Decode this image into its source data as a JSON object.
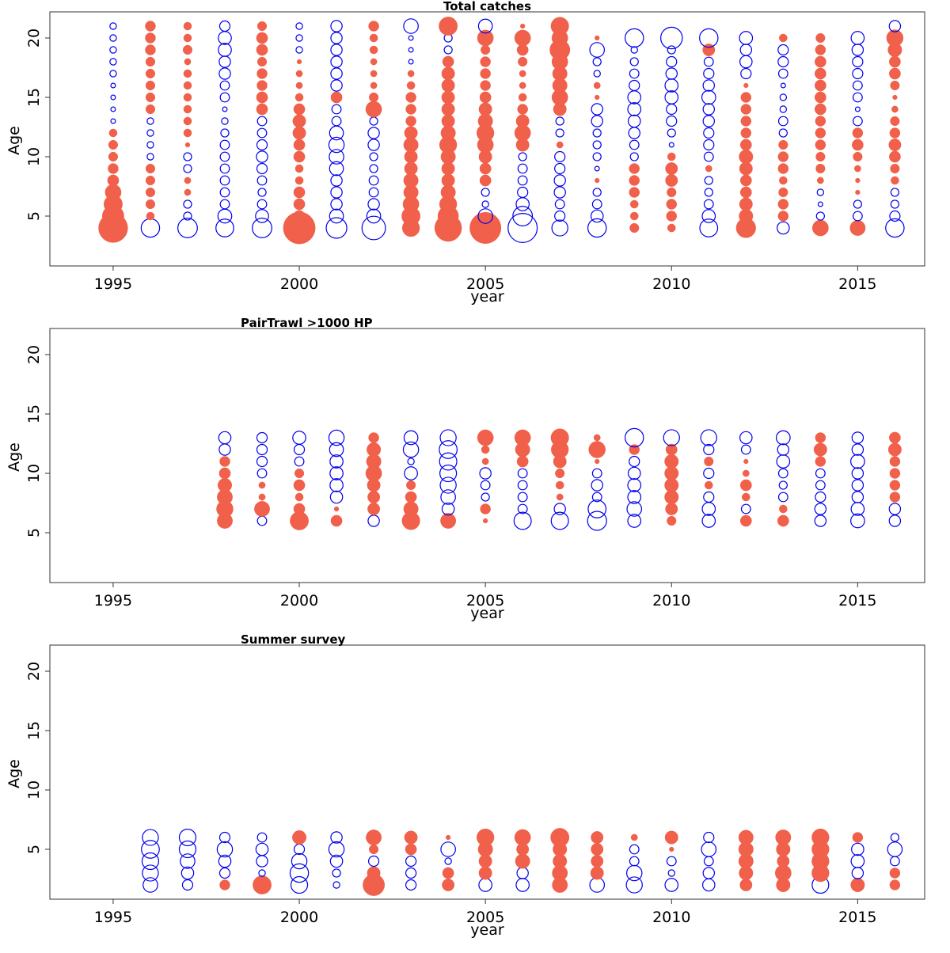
{
  "colors": {
    "positive": "#f0604a",
    "negative": "#0000ee",
    "frame": "#333333"
  },
  "chart_data": [
    {
      "type": "scatter",
      "subtype": "bubble-residuals",
      "title": "Total catches",
      "xlabel": "year",
      "ylabel": "Age",
      "xlim": [
        1993.3,
        2016.8
      ],
      "ylim": [
        0.8,
        22.2
      ],
      "xticks": [
        1995,
        2000,
        2005,
        2010,
        2015
      ],
      "yticks": [
        5,
        10,
        15,
        20
      ],
      "legend": "none",
      "grid": false,
      "columns": [
        {
          "year": 1995,
          "ages_from": 4,
          "values": [
            4,
            2.2,
            1.6,
            1.2,
            0.6,
            0.5,
            0.4,
            0.4,
            0.3,
            -0.1,
            -0.1,
            -0.1,
            -0.1,
            -0.2,
            -0.2,
            -0.2,
            -0.2,
            -0.2
          ]
        },
        {
          "year": 1996,
          "ages_from": 4,
          "values": [
            -1.6,
            0.3,
            0.4,
            0.4,
            0.4,
            0.4,
            -0.2,
            -0.2,
            -0.2,
            -0.2,
            0.4,
            0.4,
            0.4,
            0.4,
            0.4,
            0.5,
            0.5,
            0.5
          ]
        },
        {
          "year": 1997,
          "ages_from": 4,
          "values": [
            -1.8,
            -0.3,
            -0.3,
            0.2,
            0.2,
            -0.3,
            -0.3,
            0.1,
            0.3,
            0.3,
            0.3,
            0.3,
            0.3,
            0.3,
            0.2,
            0.4,
            0.3,
            0.3
          ]
        },
        {
          "year": 1998,
          "ages_from": 4,
          "values": [
            -1.5,
            -0.9,
            -0.4,
            -0.4,
            -0.4,
            -0.4,
            -0.4,
            -0.4,
            -0.3,
            -0.2,
            -0.1,
            -0.4,
            -0.4,
            -0.6,
            -0.6,
            -0.8,
            -0.8,
            -0.5
          ]
        },
        {
          "year": 1999,
          "ages_from": 4,
          "values": [
            -1.8,
            -0.8,
            -0.4,
            -0.3,
            -0.4,
            -0.5,
            -0.6,
            -0.5,
            -0.4,
            -0.4,
            0.6,
            0.6,
            0.5,
            0.5,
            0.4,
            0.6,
            0.6,
            0.4
          ]
        },
        {
          "year": 2000,
          "ages_from": 4,
          "values": [
            4.8,
            0.6,
            0.6,
            0.6,
            0.3,
            0.3,
            0.6,
            0.6,
            0.8,
            0.8,
            0.6,
            0.3,
            0.2,
            0.2,
            0.1,
            -0.2,
            -0.2,
            -0.2
          ]
        },
        {
          "year": 2001,
          "ages_from": 4,
          "values": [
            -2,
            -0.9,
            -0.6,
            -0.6,
            -0.6,
            -0.9,
            -1,
            -1.1,
            -0.9,
            -0.4,
            -0.4,
            0.6,
            -0.6,
            -0.6,
            -0.6,
            -0.6,
            -0.6,
            -0.6
          ]
        },
        {
          "year": 2002,
          "ages_from": 4,
          "values": [
            -2.6,
            -0.9,
            -0.6,
            -0.4,
            -0.4,
            -0.3,
            -0.3,
            -0.6,
            -0.6,
            -0.3,
            1.2,
            0.4,
            0.2,
            0.2,
            0.2,
            0.3,
            0.3,
            0.5
          ]
        },
        {
          "year": 2003,
          "ages_from": 4,
          "values": [
            1.4,
            1.6,
            1.2,
            1,
            1,
            0.8,
            0.8,
            1,
            0.8,
            0.5,
            0.5,
            0.5,
            0.3,
            0.2,
            -0.1,
            -0.1,
            -0.1,
            -1
          ]
        },
        {
          "year": 2004,
          "ages_from": 4,
          "values": [
            3.4,
            2,
            1.4,
            1,
            0.8,
            0.8,
            1,
            1.4,
            1,
            0.8,
            0.8,
            0.8,
            0.8,
            0.8,
            0.6,
            -0.3,
            -0.3,
            1.6
          ]
        },
        {
          "year": 2005,
          "ages_from": 4,
          "values": [
            4.6,
            -1,
            -0.2,
            -0.3,
            0.6,
            0.6,
            0.8,
            1.2,
            1.4,
            1,
            0.8,
            0.6,
            0.5,
            0.5,
            0.5,
            0.4,
            1.2,
            -0.9
          ]
        },
        {
          "year": 2006,
          "ages_from": 4,
          "values": [
            -4,
            -1.8,
            -0.8,
            -0.5,
            -0.4,
            -0.4,
            -0.3,
            0.8,
            1.2,
            0.8,
            0.5,
            0.3,
            0.2,
            0.2,
            0.4,
            0.6,
            1.2,
            0.1
          ]
        },
        {
          "year": 2007,
          "ages_from": 4,
          "values": [
            -1.2,
            -0.5,
            -0.4,
            -0.6,
            -0.6,
            -0.5,
            -0.5,
            0.2,
            -0.3,
            -0.3,
            0.8,
            1.2,
            1,
            1,
            1.2,
            1.9,
            1.2,
            1.5
          ]
        },
        {
          "year": 2008,
          "ages_from": 4,
          "values": [
            -1.6,
            -0.7,
            -0.4,
            -0.3,
            0.1,
            -0.1,
            -0.3,
            -0.3,
            -0.3,
            -0.6,
            -0.6,
            0.1,
            0.2,
            -0.2,
            -0.3,
            -1,
            0.1
          ]
        },
        {
          "year": 2009,
          "ages_from": 4,
          "values": [
            0.4,
            0.3,
            0.3,
            0.5,
            0.5,
            0.5,
            -0.3,
            -0.4,
            -0.6,
            -0.7,
            -0.8,
            -0.8,
            -0.5,
            -0.4,
            -0.3,
            -0.2,
            -1.6
          ]
        },
        {
          "year": 2010,
          "ages_from": 4,
          "values": [
            0.3,
            0.5,
            0.5,
            0.4,
            0.7,
            0.7,
            0.3,
            -0.1,
            -0.3,
            -0.5,
            -0.5,
            -0.8,
            -0.8,
            -0.6,
            -0.5,
            -0.3,
            -2.2
          ]
        },
        {
          "year": 2011,
          "ages_from": 4,
          "values": [
            -1.5,
            -0.8,
            -0.4,
            -0.3,
            -0.3,
            0.2,
            -0.4,
            -0.5,
            -0.5,
            -0.6,
            -0.6,
            -0.9,
            -0.6,
            -0.5,
            -0.4,
            0.7,
            -1.6
          ]
        },
        {
          "year": 2012,
          "ages_from": 4,
          "values": [
            1.8,
            0.9,
            0.8,
            0.6,
            0.6,
            0.8,
            0.9,
            0.6,
            0.5,
            0.5,
            0.5,
            0.5,
            0.1,
            -0.5,
            -0.7,
            -0.6,
            -0.8
          ]
        },
        {
          "year": 2013,
          "ages_from": 4,
          "values": [
            -0.7,
            0.5,
            0.5,
            0.4,
            0.3,
            0.5,
            0.5,
            0.4,
            -0.3,
            -0.4,
            -0.2,
            -0.2,
            -0.1,
            -0.4,
            -0.5,
            -0.5,
            0.3
          ]
        },
        {
          "year": 2014,
          "ages_from": 4,
          "values": [
            1.2,
            -0.3,
            -0.1,
            -0.2,
            0.2,
            0.4,
            0.4,
            0.5,
            0.5,
            0.5,
            0.6,
            0.6,
            0.6,
            0.6,
            0.6,
            0.5,
            0.4
          ]
        },
        {
          "year": 2015,
          "ages_from": 4,
          "values": [
            1.1,
            -0.4,
            -0.3,
            0.1,
            0.1,
            0.2,
            0.4,
            0.6,
            0.5,
            -0.4,
            -0.1,
            -0.4,
            -0.4,
            -0.5,
            -0.5,
            -0.6,
            -0.8
          ]
        },
        {
          "year": 2016,
          "ages_from": 4,
          "values": [
            -1.6,
            -0.5,
            -0.3,
            -0.3,
            0.3,
            0.4,
            0.6,
            0.7,
            0.5,
            0.4,
            0.2,
            0.1,
            0.4,
            0.6,
            0.6,
            0.9,
            1.3,
            -0.6
          ]
        }
      ]
    },
    {
      "type": "scatter",
      "subtype": "bubble-residuals",
      "title": "PairTrawl >1000 HP",
      "xlabel": "year",
      "ylabel": "Age",
      "xlim": [
        1993.3,
        2016.8
      ],
      "ylim": [
        0.8,
        22.2
      ],
      "xticks": [
        1995,
        2000,
        2005,
        2010,
        2015
      ],
      "yticks": [
        5,
        10,
        15,
        20
      ],
      "legend": "none",
      "grid": false,
      "columns": [
        {
          "year": 1998,
          "ages_from": 6,
          "values": [
            1.1,
            1.3,
            1.1,
            0.9,
            0.6,
            0.5,
            -0.6,
            -0.7
          ]
        },
        {
          "year": 1999,
          "ages_from": 6,
          "values": [
            -0.4,
            1.1,
            0.2,
            0.2,
            -0.4,
            -0.5,
            -0.5,
            -0.5
          ]
        },
        {
          "year": 2000,
          "ages_from": 6,
          "values": [
            1.6,
            0.6,
            0.3,
            0.6,
            0.4,
            -0.4,
            -0.5,
            -0.8
          ]
        },
        {
          "year": 2001,
          "ages_from": 6,
          "values": [
            0.6,
            0.1,
            -0.7,
            -0.8,
            -0.8,
            -0.8,
            -0.9,
            -1.1
          ]
        },
        {
          "year": 2002,
          "ages_from": 6,
          "values": [
            -0.6,
            0.7,
            0.7,
            0.8,
            1.2,
            1,
            0.9,
            0.5
          ]
        },
        {
          "year": 2003,
          "ages_from": 6,
          "values": [
            1.5,
            1,
            0.6,
            0.4,
            -0.8,
            -0.2,
            -1.1,
            -0.9
          ]
        },
        {
          "year": 2004,
          "ages_from": 6,
          "values": [
            1.1,
            -0.7,
            -1,
            -1.2,
            -1.3,
            -1.4,
            -1.5,
            -1.2
          ]
        },
        {
          "year": 2005,
          "ages_from": 6,
          "values": [
            0.1,
            0.5,
            -0.3,
            -0.4,
            -0.6,
            0.2,
            0.3,
            1.2
          ]
        },
        {
          "year": 2006,
          "ages_from": 6,
          "values": [
            -1.4,
            -0.4,
            -0.4,
            -0.4,
            -0.4,
            0.6,
            1,
            1.2
          ]
        },
        {
          "year": 2007,
          "ages_from": 6,
          "values": [
            -1.4,
            -0.6,
            0.2,
            0.3,
            0.4,
            0.8,
            1.4,
            1.5
          ]
        },
        {
          "year": 2008,
          "ages_from": 6,
          "values": [
            -1.7,
            -1.5,
            -0.4,
            -0.6,
            -0.4,
            0.1,
            1.3,
            0.2
          ]
        },
        {
          "year": 2009,
          "ages_from": 6,
          "values": [
            -0.8,
            -1,
            -0.8,
            -0.8,
            -0.7,
            -0.5,
            0.5,
            -1.6
          ]
        },
        {
          "year": 2010,
          "ages_from": 6,
          "values": [
            0.4,
            0.7,
            0.9,
            0.9,
            0.9,
            0.9,
            0.6,
            -1.2
          ]
        },
        {
          "year": 2011,
          "ages_from": 6,
          "values": [
            -0.8,
            -0.8,
            -0.5,
            0.3,
            -0.5,
            0.4,
            -0.5,
            -1.2
          ]
        },
        {
          "year": 2012,
          "ages_from": 6,
          "values": [
            0.6,
            -0.4,
            0.3,
            0.6,
            0.2,
            0.1,
            -0.4,
            -0.7
          ]
        },
        {
          "year": 2013,
          "ages_from": 6,
          "values": [
            0.6,
            0.3,
            -0.4,
            -0.3,
            -0.4,
            -0.8,
            -0.6,
            -0.9
          ]
        },
        {
          "year": 2014,
          "ages_from": 6,
          "values": [
            -0.6,
            -0.6,
            -0.5,
            -0.4,
            -0.4,
            0.5,
            0.8,
            0.5
          ]
        },
        {
          "year": 2015,
          "ages_from": 6,
          "values": [
            -0.9,
            -0.8,
            -0.6,
            -0.6,
            -0.6,
            -0.9,
            -0.6,
            -0.6
          ]
        },
        {
          "year": 2016,
          "ages_from": 6,
          "values": [
            -0.6,
            -0.6,
            0.5,
            0.5,
            0.5,
            0.5,
            0.8,
            0.6
          ]
        }
      ]
    },
    {
      "type": "scatter",
      "subtype": "bubble-residuals",
      "title": "Summer survey",
      "xlabel": "year",
      "ylabel": "Age",
      "xlim": [
        1993.3,
        2016.8
      ],
      "ylim": [
        0.8,
        22.2
      ],
      "xticks": [
        1995,
        2000,
        2005,
        2010,
        2015
      ],
      "yticks": [
        5,
        10,
        15,
        20
      ],
      "legend": "none",
      "grid": false,
      "columns": [
        {
          "year": 1996,
          "ages_from": 2,
          "values": [
            -1,
            -1.2,
            -1.3,
            -1.5,
            -1.2
          ]
        },
        {
          "year": 1997,
          "ages_from": 2,
          "values": [
            -0.5,
            -0.7,
            -1,
            -1.3,
            -1.3
          ]
        },
        {
          "year": 1998,
          "ages_from": 2,
          "values": [
            0.5,
            -0.5,
            -0.7,
            -1.1,
            -0.5
          ]
        },
        {
          "year": 1999,
          "ages_from": 2,
          "values": [
            1.6,
            -0.2,
            -0.6,
            -0.7,
            -0.4
          ]
        },
        {
          "year": 2000,
          "ages_from": 2,
          "values": [
            -1.3,
            -1.6,
            -1.1,
            -0.5,
            0.9
          ]
        },
        {
          "year": 2001,
          "ages_from": 2,
          "values": [
            -0.2,
            -0.3,
            -0.7,
            -1.1,
            -0.6
          ]
        },
        {
          "year": 2002,
          "ages_from": 2,
          "values": [
            2.2,
            0.8,
            -0.5,
            0.4,
            1.1
          ]
        },
        {
          "year": 2003,
          "ages_from": 2,
          "values": [
            -0.5,
            -0.5,
            -0.5,
            0.6,
            0.8
          ]
        },
        {
          "year": 2004,
          "ages_from": 2,
          "values": [
            0.7,
            0.6,
            -0.2,
            -1,
            0.1
          ]
        },
        {
          "year": 2005,
          "ages_from": 2,
          "values": [
            -0.8,
            0.8,
            0.8,
            1,
            1.4
          ]
        },
        {
          "year": 2006,
          "ages_from": 2,
          "values": [
            -0.8,
            -0.6,
            1,
            0.7,
            1.2
          ]
        },
        {
          "year": 2007,
          "ages_from": 2,
          "values": [
            1.1,
            1.1,
            0.9,
            0.9,
            1.6
          ]
        },
        {
          "year": 2008,
          "ages_from": 2,
          "values": [
            -1,
            0.8,
            0.7,
            0.7,
            0.7
          ]
        },
        {
          "year": 2009,
          "ages_from": 2,
          "values": [
            -1.2,
            -1.1,
            -0.4,
            -0.4,
            0.2
          ]
        },
        {
          "year": 2010,
          "ages_from": 2,
          "values": [
            -0.8,
            -0.2,
            -0.4,
            0.1,
            0.8
          ]
        },
        {
          "year": 2011,
          "ages_from": 2,
          "values": [
            -0.7,
            -0.6,
            -0.4,
            -1,
            -0.5
          ]
        },
        {
          "year": 2012,
          "ages_from": 2,
          "values": [
            0.7,
            0.9,
            1,
            1,
            1
          ]
        },
        {
          "year": 2013,
          "ages_from": 2,
          "values": [
            0.9,
            1.2,
            0.7,
            0.9,
            1.1
          ]
        },
        {
          "year": 2014,
          "ages_from": 2,
          "values": [
            -1.3,
            1.4,
            1.4,
            1.4,
            1.4
          ]
        },
        {
          "year": 2015,
          "ages_from": 2,
          "values": [
            0.9,
            -0.6,
            -0.8,
            -0.7,
            0.5
          ]
        },
        {
          "year": 2016,
          "ages_from": 2,
          "values": [
            0.5,
            0.5,
            -0.4,
            -1,
            -0.3
          ]
        }
      ]
    }
  ]
}
